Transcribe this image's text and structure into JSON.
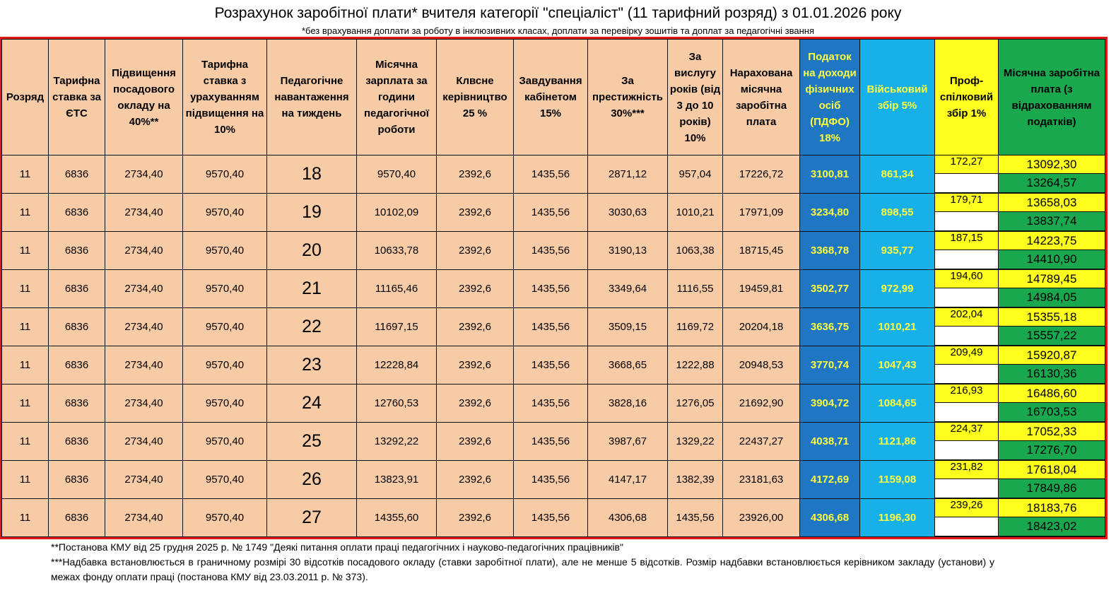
{
  "title": "Розрахунок заробітної плати* вчителя категорії \"спеціаліст\" (11 тарифний розряд) з 01.01.2026 року",
  "subtitle": "*без врахування доплати за роботу в інклюзивних класах, доплати за перевірку зошитів та доплат за педагогічні звання",
  "headers": [
    "Розряд",
    "Тарифна ставка за ЄТС",
    "Підвищення посадового окладу на 40%**",
    "Тарифна ставка з урахуванням підвищення на 10%",
    "Педагогічне навантаження на тиждень",
    "Місячна зарплата за години педагогічної роботи",
    "Клвсне керівництво 25 %",
    "Завдування кабінетом 15%",
    "За престижність 30%***",
    "За вислугу років (від 3 до 10 років) 10%",
    "Нарахована місячна заробітна плата",
    "Податок на доходи фізичних осіб (ПДФО) 18%",
    "Військовий збір 5%",
    "Проф-спілковий збір 1%",
    "Місячна заробітна плата (з відрахованням податків)"
  ],
  "rows": [
    {
      "rank": "11",
      "rate": "6836",
      "raise40": "2734,40",
      "rate10": "9570,40",
      "load": "18",
      "monthly": "9570,40",
      "class": "2392,6",
      "cabinet": "1435,56",
      "prestige": "2871,12",
      "seniority": "957,04",
      "accrued": "17226,72",
      "pdfo": "3100,81",
      "military": "861,34",
      "union": "172,27",
      "net_union": "13092,30",
      "net": "13264,57"
    },
    {
      "rank": "11",
      "rate": "6836",
      "raise40": "2734,40",
      "rate10": "9570,40",
      "load": "19",
      "monthly": "10102,09",
      "class": "2392,6",
      "cabinet": "1435,56",
      "prestige": "3030,63",
      "seniority": "1010,21",
      "accrued": "17971,09",
      "pdfo": "3234,80",
      "military": "898,55",
      "union": "179,71",
      "net_union": "13658,03",
      "net": "13837,74"
    },
    {
      "rank": "11",
      "rate": "6836",
      "raise40": "2734,40",
      "rate10": "9570,40",
      "load": "20",
      "monthly": "10633,78",
      "class": "2392,6",
      "cabinet": "1435,56",
      "prestige": "3190,13",
      "seniority": "1063,38",
      "accrued": "18715,45",
      "pdfo": "3368,78",
      "military": "935,77",
      "union": "187,15",
      "net_union": "14223,75",
      "net": "14410,90"
    },
    {
      "rank": "11",
      "rate": "6836",
      "raise40": "2734,40",
      "rate10": "9570,40",
      "load": "21",
      "monthly": "11165,46",
      "class": "2392,6",
      "cabinet": "1435,56",
      "prestige": "3349,64",
      "seniority": "1116,55",
      "accrued": "19459,81",
      "pdfo": "3502,77",
      "military": "972,99",
      "union": "194,60",
      "net_union": "14789,45",
      "net": "14984,05"
    },
    {
      "rank": "11",
      "rate": "6836",
      "raise40": "2734,40",
      "rate10": "9570,40",
      "load": "22",
      "monthly": "11697,15",
      "class": "2392,6",
      "cabinet": "1435,56",
      "prestige": "3509,15",
      "seniority": "1169,72",
      "accrued": "20204,18",
      "pdfo": "3636,75",
      "military": "1010,21",
      "union": "202,04",
      "net_union": "15355,18",
      "net": "15557,22"
    },
    {
      "rank": "11",
      "rate": "6836",
      "raise40": "2734,40",
      "rate10": "9570,40",
      "load": "23",
      "monthly": "12228,84",
      "class": "2392,6",
      "cabinet": "1435,56",
      "prestige": "3668,65",
      "seniority": "1222,88",
      "accrued": "20948,53",
      "pdfo": "3770,74",
      "military": "1047,43",
      "union": "209,49",
      "net_union": "15920,87",
      "net": "16130,36"
    },
    {
      "rank": "11",
      "rate": "6836",
      "raise40": "2734,40",
      "rate10": "9570,40",
      "load": "24",
      "monthly": "12760,53",
      "class": "2392,6",
      "cabinet": "1435,56",
      "prestige": "3828,16",
      "seniority": "1276,05",
      "accrued": "21692,90",
      "pdfo": "3904,72",
      "military": "1084,65",
      "union": "216,93",
      "net_union": "16486,60",
      "net": "16703,53"
    },
    {
      "rank": "11",
      "rate": "6836",
      "raise40": "2734,40",
      "rate10": "9570,40",
      "load": "25",
      "monthly": "13292,22",
      "class": "2392,6",
      "cabinet": "1435,56",
      "prestige": "3987,67",
      "seniority": "1329,22",
      "accrued": "22437,27",
      "pdfo": "4038,71",
      "military": "1121,86",
      "union": "224,37",
      "net_union": "17052,33",
      "net": "17276,70"
    },
    {
      "rank": "11",
      "rate": "6836",
      "raise40": "2734,40",
      "rate10": "9570,40",
      "load": "26",
      "monthly": "13823,91",
      "class": "2392,6",
      "cabinet": "1435,56",
      "prestige": "4147,17",
      "seniority": "1382,39",
      "accrued": "23181,63",
      "pdfo": "4172,69",
      "military": "1159,08",
      "union": "231,82",
      "net_union": "17618,04",
      "net": "17849,86"
    },
    {
      "rank": "11",
      "rate": "6836",
      "raise40": "2734,40",
      "rate10": "9570,40",
      "load": "27",
      "monthly": "14355,60",
      "class": "2392,6",
      "cabinet": "1435,56",
      "prestige": "4306,68",
      "seniority": "1435,56",
      "accrued": "23926,00",
      "pdfo": "4306,68",
      "military": "1196,30",
      "union": "239,26",
      "net_union": "18183,76",
      "net": "18423,02"
    }
  ],
  "notes": {
    "note2": "**Постанова КМУ від 25 грудня 2025 р. № 1749 \"Деякі питання оплати праці педагогічних і науково-педагогічних працівників\"",
    "note3": "***Надбавка встановлюється в граничному розмірі 30 відсотків посадового окладу (ставки заробітної плати), але не менше 5 відсотків. Розмір надбавки встановлюється керівником закладу (установи) у межах фонду оплати праці (постанова КМУ від 23.03.2011 р. № 373)."
  },
  "colors": {
    "peach": "#f8cba7",
    "pdfo_blue": "#1f76c2",
    "military_blue": "#18b0e8",
    "yellow": "#ffff1e",
    "green": "#1aa84e",
    "border_red": "#e01818"
  }
}
